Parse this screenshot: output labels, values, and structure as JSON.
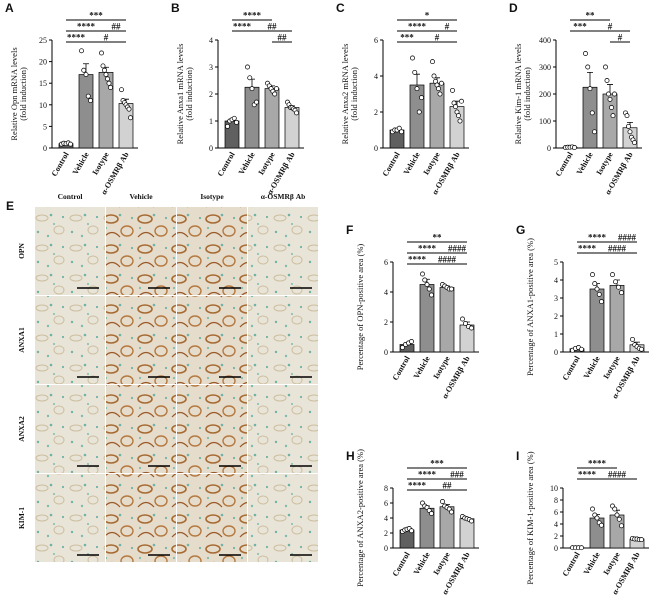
{
  "chart_data": [
    {
      "type": "bar",
      "panel": "A",
      "ylabel": [
        "Relative Opn mRNA levels",
        "(fold induction)"
      ],
      "categories": [
        "Control",
        "Vehicle",
        "Isotype",
        "α-OSMRβ Ab"
      ],
      "colors": [
        "#606060",
        "#8e8e8e",
        "#a8a8a8",
        "#d2d2d2"
      ],
      "values": [
        1.0,
        17.0,
        17.5,
        10.3
      ],
      "errors": [
        0.15,
        2.5,
        1.2,
        1.0
      ],
      "points": [
        [
          0.9,
          1.1,
          1.0,
          1.2,
          0.9
        ],
        [
          22.5,
          18,
          17,
          12,
          11
        ],
        [
          22,
          19,
          18,
          17,
          16,
          15,
          14
        ],
        [
          13.5,
          11,
          10.5,
          10,
          9.5,
          9,
          7
        ]
      ],
      "ylim": [
        0,
        25
      ],
      "yticks": [
        0,
        5,
        10,
        15,
        20,
        25
      ],
      "brackets": [
        {
          "between": [
            "Control",
            "α-OSMRβ Ab"
          ],
          "label": "***"
        },
        {
          "between": [
            "Control",
            "Isotype"
          ],
          "label": "****"
        },
        {
          "between": [
            "Isotype",
            "α-OSMRβ Ab"
          ],
          "label": "##"
        },
        {
          "between": [
            "Control",
            "Vehicle"
          ],
          "label": "****"
        },
        {
          "between": [
            "Vehicle",
            "α-OSMRβ Ab"
          ],
          "label": "#"
        }
      ]
    },
    {
      "type": "bar",
      "panel": "B",
      "ylabel": [
        "Relative Anxa1 mRNA levels",
        "(fold induction)"
      ],
      "categories": [
        "Control",
        "Vehicle",
        "Isotype",
        "α-OSMRβ Ab"
      ],
      "colors": [
        "#606060",
        "#8e8e8e",
        "#a8a8a8",
        "#d2d2d2"
      ],
      "values": [
        1.0,
        2.25,
        2.2,
        1.5
      ],
      "errors": [
        0.08,
        0.3,
        0.1,
        0.06
      ],
      "points": [
        [
          0.8,
          1.0,
          1.05,
          1.1,
          0.95
        ],
        [
          3.0,
          2.6,
          2.2,
          1.6,
          1.7
        ],
        [
          2.4,
          2.3,
          2.2,
          2.1,
          2.0,
          2.2
        ],
        [
          1.7,
          1.6,
          1.5,
          1.5,
          1.45,
          1.4,
          1.3
        ]
      ],
      "ylim": [
        0,
        4
      ],
      "yticks": [
        0,
        1,
        2,
        3,
        4
      ],
      "brackets": [
        {
          "between": [
            "Control",
            "Isotype"
          ],
          "label": "****"
        },
        {
          "between": [
            "Control",
            "Vehicle"
          ],
          "label": "****"
        },
        {
          "between": [
            "Vehicle",
            "α-OSMRβ Ab"
          ],
          "label": "##"
        },
        {
          "between": [
            "Isotype",
            "α-OSMRβ Ab"
          ],
          "label": "##"
        }
      ]
    },
    {
      "type": "bar",
      "panel": "C",
      "ylabel": [
        "Relative Anxa2 mRNA levels",
        "(fold induction)"
      ],
      "categories": [
        "Control",
        "Vehicle",
        "Isotype",
        "α-OSMRβ Ab"
      ],
      "colors": [
        "#606060",
        "#8e8e8e",
        "#a8a8a8",
        "#d2d2d2"
      ],
      "values": [
        1.0,
        3.5,
        3.6,
        2.3
      ],
      "errors": [
        0.05,
        0.6,
        0.3,
        0.3
      ],
      "points": [
        [
          0.9,
          1.0,
          1.0,
          1.1,
          0.9
        ],
        [
          5.0,
          4.2,
          3.3,
          2.0,
          2.8
        ],
        [
          4.8,
          4.0,
          3.7,
          3.5,
          3.3,
          3.0,
          3.6
        ],
        [
          3.2,
          2.5,
          2.3,
          2.0,
          1.8,
          1.5,
          2.6
        ]
      ],
      "ylim": [
        0,
        6
      ],
      "yticks": [
        0,
        2,
        4,
        6
      ],
      "brackets": [
        {
          "between": [
            "Control",
            "α-OSMRβ Ab"
          ],
          "label": "*"
        },
        {
          "between": [
            "Control",
            "Isotype"
          ],
          "label": "****"
        },
        {
          "between": [
            "Isotype",
            "α-OSMRβ Ab"
          ],
          "label": "#"
        },
        {
          "between": [
            "Control",
            "Vehicle"
          ],
          "label": "***"
        },
        {
          "between": [
            "Vehicle",
            "α-OSMRβ Ab"
          ],
          "label": "#"
        }
      ]
    },
    {
      "type": "bar",
      "panel": "D",
      "ylabel": [
        "Relative Kim-1 mRNA levels",
        "(fold induction)"
      ],
      "categories": [
        "Control",
        "Vehicle",
        "Isotype",
        "α-OSMRβ Ab"
      ],
      "colors": [
        "#606060",
        "#8e8e8e",
        "#a8a8a8",
        "#d2d2d2"
      ],
      "values": [
        3,
        225,
        200,
        75
      ],
      "errors": [
        1,
        55,
        35,
        20
      ],
      "points": [
        [
          2,
          3,
          3,
          4,
          2
        ],
        [
          350,
          300,
          220,
          130,
          60
        ],
        [
          300,
          250,
          200,
          180,
          150,
          120,
          200
        ],
        [
          130,
          120,
          80,
          60,
          40,
          30,
          20
        ]
      ],
      "ylim": [
        0,
        400
      ],
      "yticks": [
        0,
        100,
        200,
        300,
        400
      ],
      "brackets": [
        {
          "between": [
            "Control",
            "Isotype"
          ],
          "label": "**"
        },
        {
          "between": [
            "Control",
            "Vehicle"
          ],
          "label": "***"
        },
        {
          "between": [
            "Vehicle",
            "α-OSMRβ Ab"
          ],
          "label": "#"
        },
        {
          "between": [
            "Isotype",
            "α-OSMRβ Ab"
          ],
          "label": "#"
        }
      ]
    },
    {
      "type": "bar",
      "panel": "F",
      "ylabel": [
        "Percentage of OPN-positive area (%)"
      ],
      "categories": [
        "Control",
        "Vehicle",
        "Isotype",
        "α-OSMRβ Ab"
      ],
      "colors": [
        "#606060",
        "#8e8e8e",
        "#a8a8a8",
        "#d2d2d2"
      ],
      "values": [
        0.5,
        4.5,
        4.3,
        1.8
      ],
      "errors": [
        0.1,
        0.35,
        0.1,
        0.2
      ],
      "points": [
        [
          0.3,
          0.5,
          0.6,
          0.7
        ],
        [
          5.2,
          4.8,
          4.5,
          4.2,
          3.8
        ],
        [
          4.5,
          4.4,
          4.3,
          4.2,
          4.2
        ],
        [
          2.2,
          1.9,
          1.7,
          1.6
        ]
      ],
      "ylim": [
        0,
        6
      ],
      "yticks": [
        0,
        2,
        4,
        6
      ],
      "brackets": [
        {
          "between": [
            "Control",
            "α-OSMRβ Ab"
          ],
          "label": "**"
        },
        {
          "between": [
            "Control",
            "Isotype"
          ],
          "label": "****"
        },
        {
          "between": [
            "Isotype",
            "α-OSMRβ Ab"
          ],
          "label": "####"
        },
        {
          "between": [
            "Control",
            "Vehicle"
          ],
          "label": "****"
        },
        {
          "between": [
            "Vehicle",
            "α-OSMRβ Ab"
          ],
          "label": "####"
        }
      ]
    },
    {
      "type": "bar",
      "panel": "G",
      "ylabel": [
        "Percentage of ANXA1-positive area (%)"
      ],
      "categories": [
        "Control",
        "Vehicle",
        "Isotype",
        "α-OSMRβ Ab"
      ],
      "colors": [
        "#606060",
        "#8e8e8e",
        "#a8a8a8",
        "#d2d2d2"
      ],
      "values": [
        0.18,
        3.5,
        3.7,
        0.4
      ],
      "errors": [
        0.05,
        0.3,
        0.3,
        0.15
      ],
      "points": [
        [
          0.1,
          0.2,
          0.25,
          0.15
        ],
        [
          4.3,
          3.8,
          3.5,
          3.2,
          2.8
        ],
        [
          4.3,
          3.9,
          3.6,
          3.3
        ],
        [
          0.7,
          0.4,
          0.3,
          0.2,
          0.15
        ]
      ],
      "ylim": [
        0,
        5
      ],
      "yticks": [
        0,
        1,
        2,
        3,
        4,
        5
      ],
      "brackets": [
        {
          "between": [
            "Control",
            "Isotype"
          ],
          "label": "****"
        },
        {
          "between": [
            "Isotype",
            "α-OSMRβ Ab"
          ],
          "label": "####"
        },
        {
          "between": [
            "Control",
            "Vehicle"
          ],
          "label": "****"
        },
        {
          "between": [
            "Vehicle",
            "α-OSMRβ Ab"
          ],
          "label": "####"
        }
      ]
    },
    {
      "type": "bar",
      "panel": "H",
      "ylabel": [
        "Percentage of ANXA2-positive area (%)"
      ],
      "categories": [
        "Control",
        "Vehicle",
        "Isotype",
        "α-OSMRβ Ab"
      ],
      "colors": [
        "#606060",
        "#8e8e8e",
        "#a8a8a8",
        "#d2d2d2"
      ],
      "values": [
        2.4,
        5.3,
        5.5,
        3.9
      ],
      "errors": [
        0.1,
        0.3,
        0.3,
        0.15
      ],
      "points": [
        [
          2.2,
          2.4,
          2.5,
          2.6,
          2.3
        ],
        [
          6.0,
          5.6,
          5.4,
          5.0,
          4.6
        ],
        [
          6.2,
          5.6,
          5.4,
          5.2,
          4.8
        ],
        [
          4.2,
          4.0,
          3.9,
          3.8,
          3.6
        ]
      ],
      "ylim": [
        0,
        8
      ],
      "yticks": [
        0,
        2,
        4,
        6,
        8
      ],
      "brackets": [
        {
          "between": [
            "Control",
            "α-OSMRβ Ab"
          ],
          "label": "***"
        },
        {
          "between": [
            "Control",
            "Isotype"
          ],
          "label": "****"
        },
        {
          "between": [
            "Isotype",
            "α-OSMRβ Ab"
          ],
          "label": "###"
        },
        {
          "between": [
            "Control",
            "Vehicle"
          ],
          "label": "****"
        },
        {
          "between": [
            "Vehicle",
            "α-OSMRβ Ab"
          ],
          "label": "##"
        }
      ]
    },
    {
      "type": "bar",
      "panel": "I",
      "ylabel": [
        "Percentage of KIM-1-positive area (%)"
      ],
      "categories": [
        "Control",
        "Vehicle",
        "Isotype",
        "α-OSMRβ Ab"
      ],
      "colors": [
        "#606060",
        "#8e8e8e",
        "#a8a8a8",
        "#d2d2d2"
      ],
      "values": [
        0.05,
        5.0,
        5.5,
        1.5
      ],
      "errors": [
        0.02,
        0.6,
        0.8,
        0.08
      ],
      "points": [
        [
          0.05,
          0.05,
          0.05,
          0.05
        ],
        [
          6.5,
          5.5,
          5.0,
          4.2,
          3.8
        ],
        [
          7.0,
          6.5,
          5.5,
          4.8,
          3.7
        ],
        [
          1.6,
          1.5,
          1.5,
          1.4,
          1.4
        ]
      ],
      "ylim": [
        0,
        10
      ],
      "yticks": [
        0,
        2,
        4,
        6,
        8,
        10
      ],
      "brackets": [
        {
          "between": [
            "Control",
            "Isotype"
          ],
          "label": "****"
        },
        {
          "between": [
            "Control",
            "Vehicle"
          ],
          "label": "****"
        },
        {
          "between": [
            "Vehicle",
            "α-OSMRβ Ab"
          ],
          "label": "####"
        }
      ]
    }
  ],
  "micrograph": {
    "panel": "E",
    "columns": [
      "Control",
      "Vehicle",
      "Isotype",
      "α-OSMRβ Ab"
    ],
    "rows": [
      "OPN",
      "ANXA1",
      "ANXA2",
      "KIM-1"
    ]
  }
}
